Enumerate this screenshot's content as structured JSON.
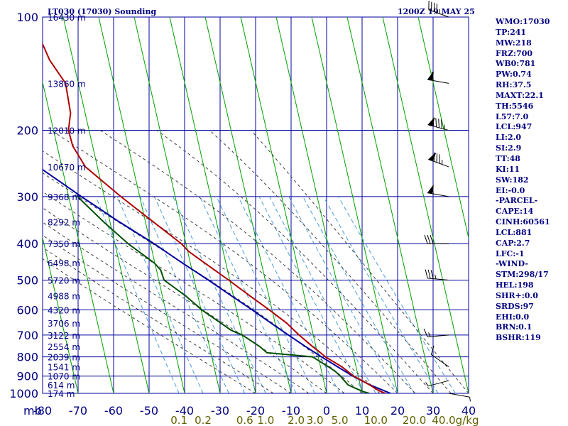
{
  "header": {
    "station": "LT030 (17030) Sounding",
    "time": "1200Z 19 MAY 25"
  },
  "indices": [
    "WMO:17030",
    "TP:241",
    "MW:218",
    "FRZ:700",
    "WB0:781",
    "PW:0.74",
    "RH:37.5",
    "MAXT:22.1",
    "TH:5546",
    "L57:7.0",
    "LCL:947",
    "LI:2.0",
    "SI:2.9",
    "TT:48",
    "KI:11",
    "SW:182",
    "EI:-0.0",
    "-PARCEL-",
    "CAPE:14",
    "CINH:60561",
    "LCL:881",
    "CAP:2.7",
    "LFC:-1",
    "-WIND-",
    "STM:298/17",
    "HEL:198",
    "SHR+:0.0",
    "SRDS:97",
    "EHI:0.0",
    "BRN:0.1",
    "BSHR:119"
  ],
  "chart_data": {
    "type": "line",
    "diagram": "skew-t log-p",
    "colors": {
      "grid": "#0000a0",
      "temperature": "#b00000",
      "dewpoint": "#005000",
      "parcel": "#0000a0",
      "dry_adiabat": "#00a000",
      "moist_adiabat": "#404040",
      "mixing_ratio": "#4a9ad8",
      "axis_text": "#000080",
      "mixing_ratio_text": "#606000"
    },
    "pressure_levels": [
      100,
      200,
      300,
      400,
      500,
      600,
      700,
      800,
      900,
      1000
    ],
    "pressure_range": [
      100,
      1000
    ],
    "x_corner_label": "mb",
    "temperature_ticks": [
      -80,
      -70,
      -60,
      -50,
      -40,
      -30,
      -20,
      -10,
      0,
      10,
      20,
      30,
      40
    ],
    "temperature_range_at_1000": [
      -80,
      40
    ],
    "mixing_ratio_labels": [
      {
        "label": "0.1",
        "value": 0.1
      },
      {
        "label": "0.2",
        "value": 0.2
      },
      {
        "label": "0.6",
        "value": 0.6
      },
      {
        "label": "1.0",
        "value": 1.0
      },
      {
        "label": "2.0",
        "value": 2.0
      },
      {
        "label": "3.0",
        "value": 3.0
      },
      {
        "label": "5.0",
        "value": 5.0
      },
      {
        "label": "10.0",
        "value": 10.0
      },
      {
        "label": "20.0",
        "value": 20.0
      },
      {
        "label": "40.0",
        "value": 40.0
      }
    ],
    "mixing_ratio_unit": "g/kg",
    "height_labels": [
      {
        "p": 100,
        "label": "16430 m"
      },
      {
        "p": 150,
        "label": "13860 m"
      },
      {
        "p": 200,
        "label": "12010 m"
      },
      {
        "p": 250,
        "label": "10670 m"
      },
      {
        "p": 300,
        "label": "9368 m"
      },
      {
        "p": 350,
        "label": "8292 m"
      },
      {
        "p": 400,
        "label": "7350 m"
      },
      {
        "p": 450,
        "label": "6498 m"
      },
      {
        "p": 500,
        "label": "5720 m"
      },
      {
        "p": 550,
        "label": "4988 m"
      },
      {
        "p": 600,
        "label": "4320 m"
      },
      {
        "p": 650,
        "label": "3706 m"
      },
      {
        "p": 700,
        "label": "3122 m"
      },
      {
        "p": 750,
        "label": "2554 m"
      },
      {
        "p": 800,
        "label": "2039 m"
      },
      {
        "p": 850,
        "label": "1541 m"
      },
      {
        "p": 900,
        "label": "1070 m"
      },
      {
        "p": 950,
        "label": "614 m"
      },
      {
        "p": 1000,
        "label": "174 m"
      }
    ],
    "temperature_profile": [
      {
        "p": 1000,
        "t": 16.6
      },
      {
        "p": 990,
        "t": 15.5
      },
      {
        "p": 975,
        "t": 14.3
      },
      {
        "p": 950,
        "t": 12.7
      },
      {
        "p": 925,
        "t": 10.8
      },
      {
        "p": 900,
        "t": 8.7
      },
      {
        "p": 875,
        "t": 7.4
      },
      {
        "p": 850,
        "t": 6.0
      },
      {
        "p": 800,
        "t": 2.0
      },
      {
        "p": 775,
        "t": 0.6
      },
      {
        "p": 750,
        "t": -1.0
      },
      {
        "p": 700,
        "t": -4.0
      },
      {
        "p": 650,
        "t": -6.8
      },
      {
        "p": 600,
        "t": -10.8
      },
      {
        "p": 550,
        "t": -15.4
      },
      {
        "p": 500,
        "t": -20.3
      },
      {
        "p": 450,
        "t": -26.0
      },
      {
        "p": 420,
        "t": -29.7
      },
      {
        "p": 400,
        "t": -31.3
      },
      {
        "p": 350,
        "t": -37.8
      },
      {
        "p": 300,
        "t": -45.3
      },
      {
        "p": 250,
        "t": -53.4
      },
      {
        "p": 220,
        "t": -55.6
      },
      {
        "p": 200,
        "t": -55.8
      },
      {
        "p": 180,
        "t": -54.1
      },
      {
        "p": 150,
        "t": -53.6
      },
      {
        "p": 130,
        "t": -56.6
      },
      {
        "p": 110,
        "t": -58.2
      },
      {
        "p": 100,
        "t": -58.5
      }
    ],
    "dewpoint_profile": [
      {
        "p": 1000,
        "td": 12.0
      },
      {
        "p": 990,
        "td": 10.5
      },
      {
        "p": 975,
        "td": 9.0
      },
      {
        "p": 950,
        "td": 6.6
      },
      {
        "p": 925,
        "td": 5.8
      },
      {
        "p": 900,
        "td": 5.0
      },
      {
        "p": 875,
        "td": 3.9
      },
      {
        "p": 850,
        "td": 2.2
      },
      {
        "p": 800,
        "td": -1.6
      },
      {
        "p": 780,
        "td": -14.2
      },
      {
        "p": 750,
        "td": -15.9
      },
      {
        "p": 700,
        "td": -20.0
      },
      {
        "p": 680,
        "td": -22.8
      },
      {
        "p": 600,
        "td": -29.8
      },
      {
        "p": 550,
        "td": -33.5
      },
      {
        "p": 500,
        "td": -38.5
      },
      {
        "p": 470,
        "td": -38.8
      },
      {
        "p": 450,
        "td": -40.2
      },
      {
        "p": 400,
        "td": -46.3
      },
      {
        "p": 350,
        "td": -51.8
      },
      {
        "p": 300,
        "td": -57.5
      }
    ],
    "parcel_profile": [
      {
        "p": 1000,
        "t": 18.0
      },
      {
        "p": 950,
        "t": 12.8
      },
      {
        "p": 900,
        "t": 8.5
      },
      {
        "p": 850,
        "t": 4.8
      },
      {
        "p": 800,
        "t": 0.9
      },
      {
        "p": 750,
        "t": -3.0
      },
      {
        "p": 700,
        "t": -7.0
      },
      {
        "p": 650,
        "t": -11.2
      },
      {
        "p": 600,
        "t": -15.6
      },
      {
        "p": 550,
        "t": -20.6
      },
      {
        "p": 500,
        "t": -26.0
      },
      {
        "p": 450,
        "t": -32.3
      },
      {
        "p": 400,
        "t": -39.0
      },
      {
        "p": 350,
        "t": -47.4
      },
      {
        "p": 300,
        "t": -56.4
      },
      {
        "p": 250,
        "t": -66.6
      },
      {
        "p": 200,
        "t": -79.8
      },
      {
        "p": 180,
        "t": -86.1
      }
    ],
    "wind_profile": [
      {
        "p": 100,
        "dir": 290,
        "spd": 45
      },
      {
        "p": 150,
        "dir": 280,
        "spd": 60
      },
      {
        "p": 200,
        "dir": 285,
        "spd": 95
      },
      {
        "p": 250,
        "dir": 290,
        "spd": 85
      },
      {
        "p": 300,
        "dir": 280,
        "spd": 55
      },
      {
        "p": 400,
        "dir": 270,
        "spd": 30
      },
      {
        "p": 500,
        "dir": 275,
        "spd": 35
      },
      {
        "p": 700,
        "dir": 265,
        "spd": 15
      },
      {
        "p": 850,
        "dir": 305,
        "spd": 10
      },
      {
        "p": 925,
        "dir": 255,
        "spd": 5
      },
      {
        "p": 1000,
        "dir": 100,
        "spd": 5
      }
    ]
  }
}
